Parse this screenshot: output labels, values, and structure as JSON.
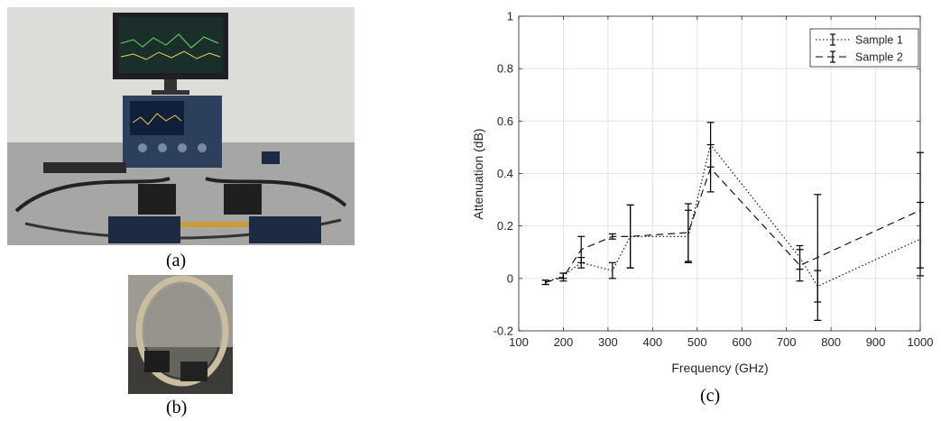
{
  "figure": {
    "caption_a": "(a)",
    "caption_b": "(b)",
    "caption_c": "(c)"
  },
  "photos": {
    "a_subject": "vector-network-analyzer-test-bench-photo",
    "b_subject": "sample-in-ring-holder-photo"
  },
  "chart_data": {
    "type": "line",
    "xlabel": "Frequency (GHz)",
    "ylabel": "Attenuation (dB)",
    "xlim": [
      100,
      1000
    ],
    "ylim": [
      -0.2,
      1
    ],
    "xticks": [
      100,
      200,
      300,
      400,
      500,
      600,
      700,
      800,
      900,
      1000
    ],
    "yticks": [
      -0.2,
      0,
      0.2,
      0.4,
      0.6,
      0.8,
      1
    ],
    "ytick_labels": [
      "-0.2",
      "0",
      "0.2",
      "0.4",
      "0.6",
      "0.8",
      "1"
    ],
    "grid": true,
    "legend_position": "top-right",
    "series": [
      {
        "name": "Sample 1",
        "style": "dotted",
        "color": "#000000",
        "points": [
          {
            "x": 160,
            "y": -0.015,
            "err": 0.008
          },
          {
            "x": 200,
            "y": 0.01,
            "err": 0.01
          },
          {
            "x": 240,
            "y": 0.06,
            "err": 0.02
          },
          {
            "x": 310,
            "y": 0.03,
            "err": 0.03
          },
          {
            "x": 350,
            "y": 0.16,
            "err": 0.12
          },
          {
            "x": 480,
            "y": 0.16,
            "err": 0.1
          },
          {
            "x": 530,
            "y": 0.51,
            "err": 0.085
          },
          {
            "x": 730,
            "y": 0.08,
            "err": 0.045
          },
          {
            "x": 770,
            "y": -0.03,
            "err": 0.06
          },
          {
            "x": 1000,
            "y": 0.15,
            "err": 0.14
          }
        ]
      },
      {
        "name": "Sample 2",
        "style": "dashed",
        "color": "#000000",
        "points": [
          {
            "x": 160,
            "y": -0.015,
            "err": 0.008
          },
          {
            "x": 200,
            "y": 0.005,
            "err": 0.015
          },
          {
            "x": 240,
            "y": 0.11,
            "err": 0.05
          },
          {
            "x": 310,
            "y": 0.16,
            "err": 0.01
          },
          {
            "x": 350,
            "y": 0.16,
            "err": 0.12
          },
          {
            "x": 480,
            "y": 0.175,
            "err": 0.11
          },
          {
            "x": 530,
            "y": 0.42,
            "err": 0.09
          },
          {
            "x": 730,
            "y": 0.05,
            "err": 0.06
          },
          {
            "x": 770,
            "y": 0.08,
            "err": 0.24
          },
          {
            "x": 1000,
            "y": 0.26,
            "err": 0.22
          }
        ]
      }
    ]
  }
}
